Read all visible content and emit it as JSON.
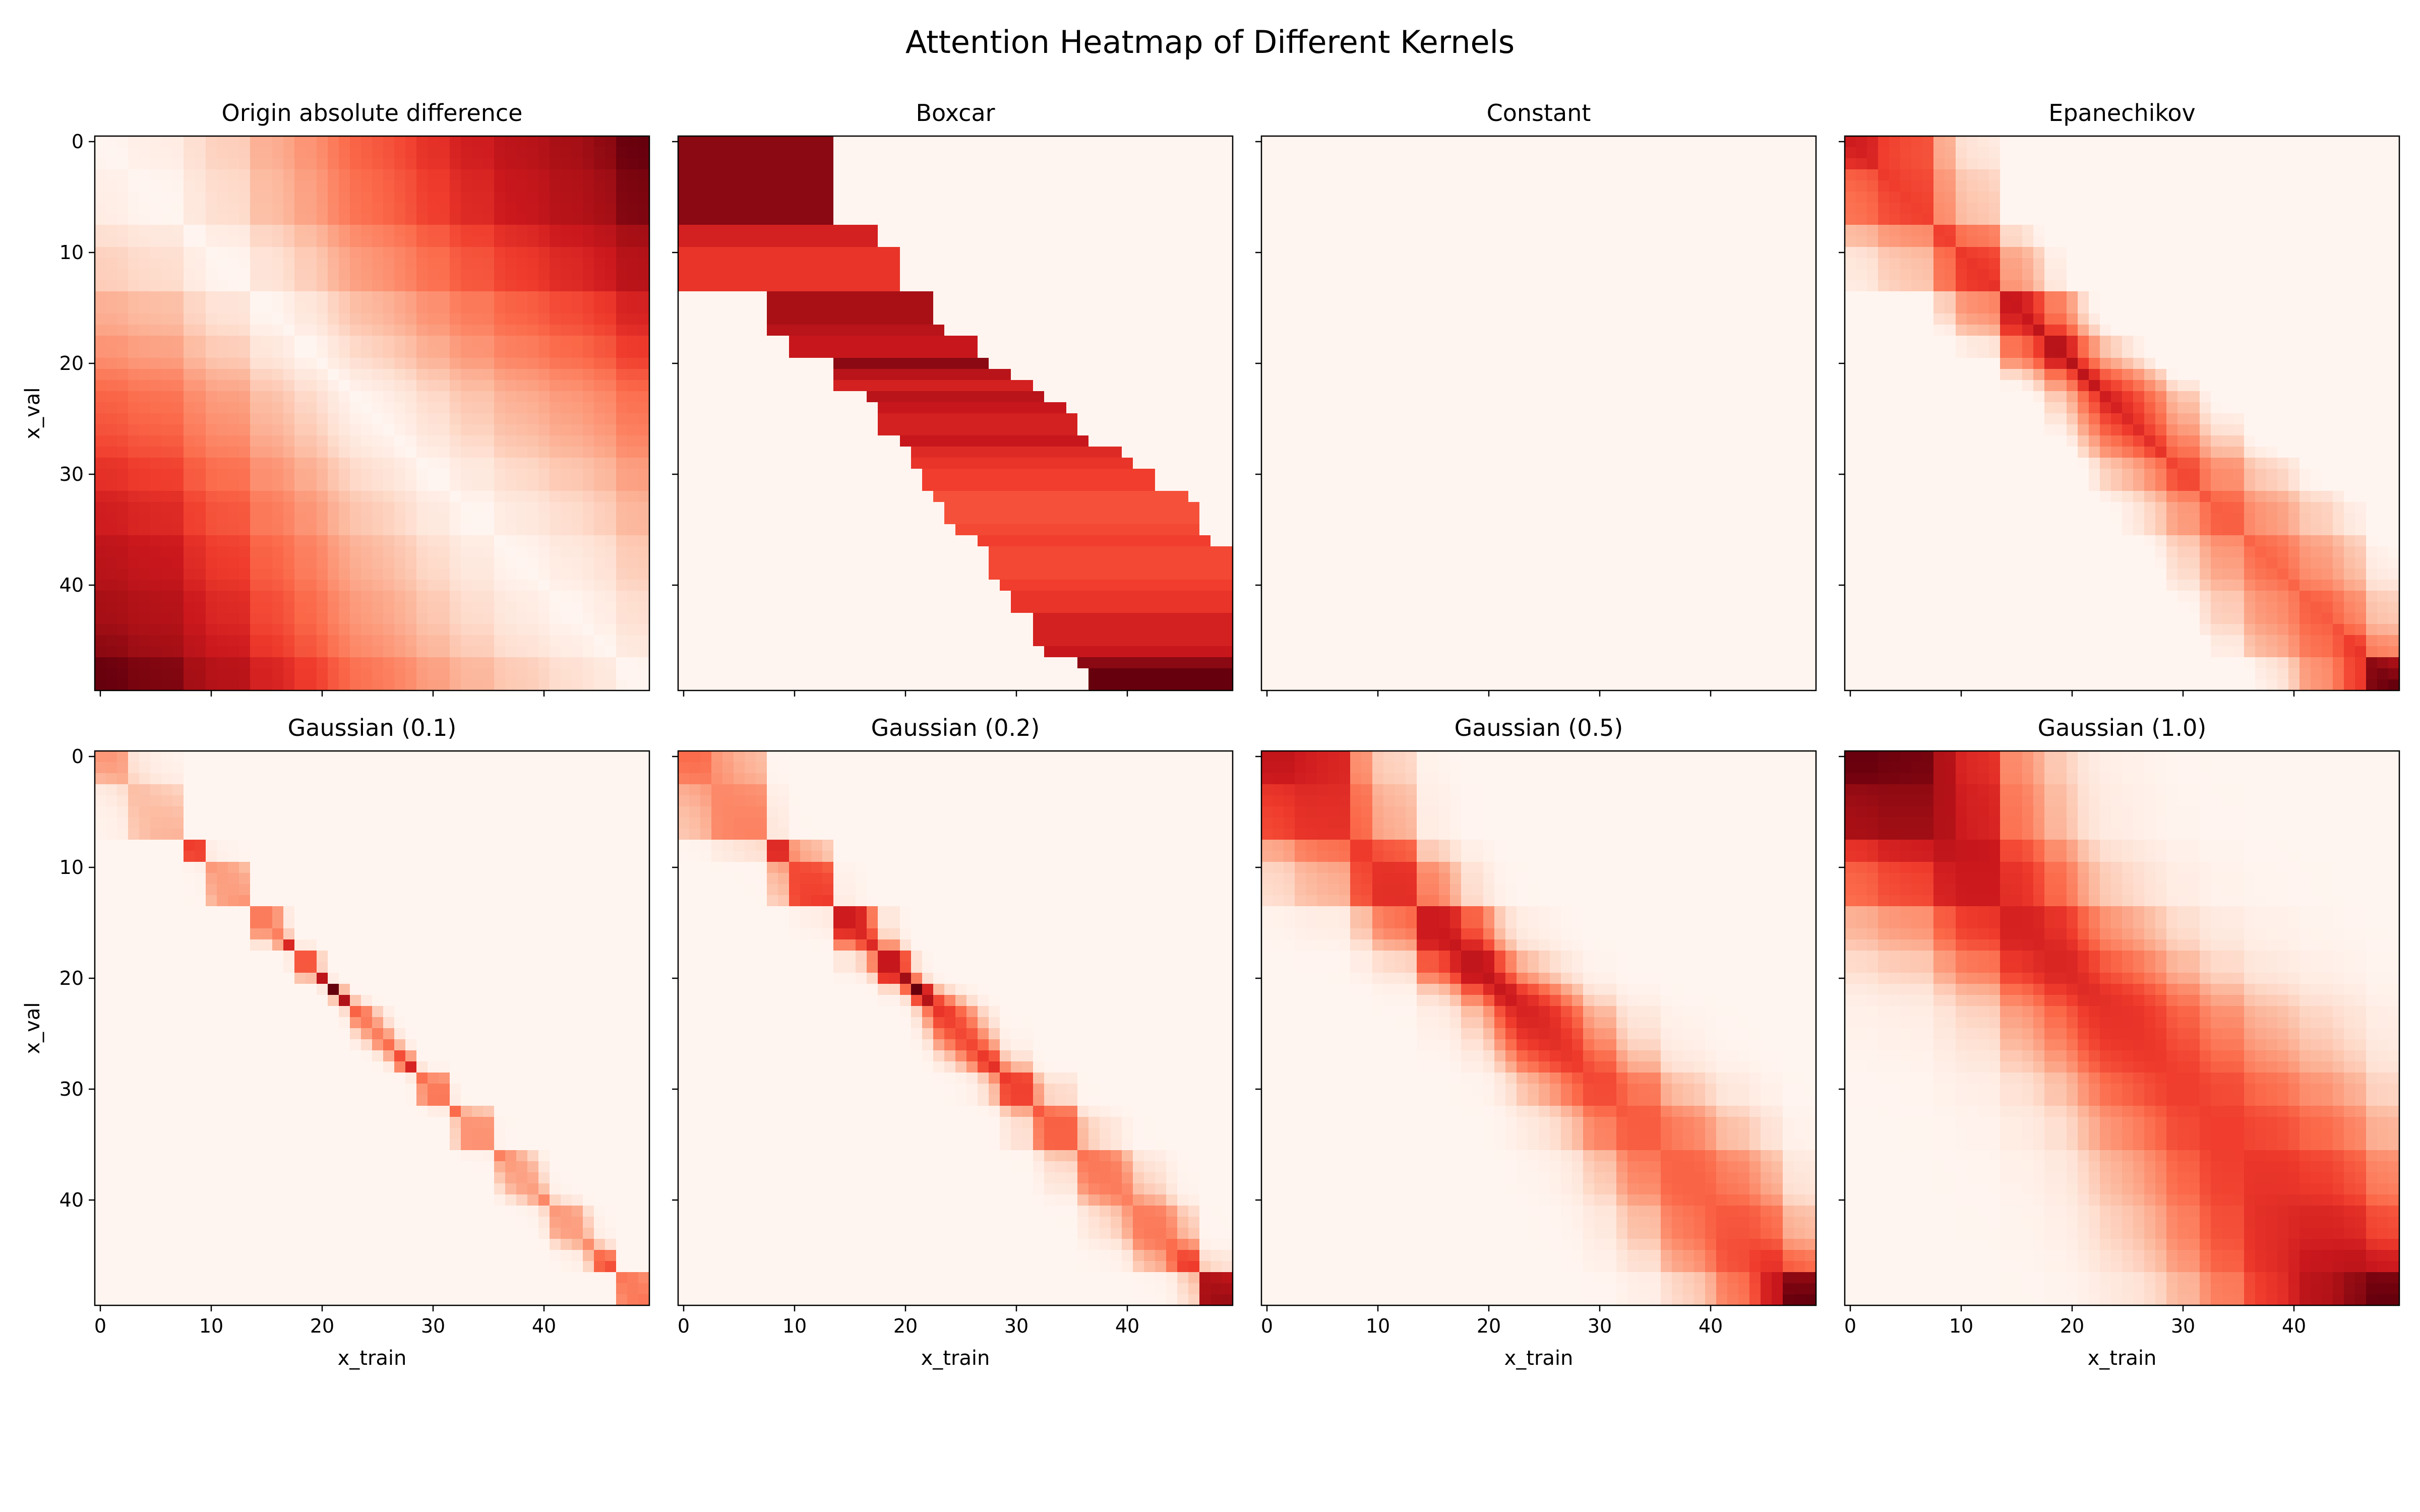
{
  "figure_title": "Attention Heatmap of Different Kernels",
  "colormap": "Reds",
  "colors": {
    "low": "#fff5f0",
    "high": "#67000d"
  },
  "chart_data": [
    {
      "type": "heatmap",
      "title": "Origin absolute difference",
      "kernel": "abs_diff",
      "n": 50,
      "xlabel": "",
      "ylabel": "x_val",
      "xticks": [
        0,
        10,
        20,
        30,
        40
      ],
      "yticks": [
        0,
        10,
        20,
        30,
        40
      ],
      "show_xticklabels": false,
      "show_yticklabels": true
    },
    {
      "type": "heatmap",
      "title": "Boxcar",
      "kernel": "boxcar",
      "n": 50,
      "xlabel": "",
      "ylabel": "",
      "xticks": [
        0,
        10,
        20,
        30,
        40
      ],
      "yticks": [
        0,
        10,
        20,
        30,
        40
      ],
      "show_xticklabels": false,
      "show_yticklabels": false
    },
    {
      "type": "heatmap",
      "title": "Constant",
      "kernel": "constant",
      "n": 50,
      "xlabel": "",
      "ylabel": "",
      "xticks": [
        0,
        10,
        20,
        30,
        40
      ],
      "yticks": [
        0,
        10,
        20,
        30,
        40
      ],
      "show_xticklabels": false,
      "show_yticklabels": false
    },
    {
      "type": "heatmap",
      "title": "Epanechikov",
      "kernel": "epanechikov",
      "n": 50,
      "xlabel": "",
      "ylabel": "",
      "xticks": [
        0,
        10,
        20,
        30,
        40
      ],
      "yticks": [
        0,
        10,
        20,
        30,
        40
      ],
      "show_xticklabels": false,
      "show_yticklabels": false
    },
    {
      "type": "heatmap",
      "title": "Gaussian (0.1)",
      "kernel": "gaussian",
      "sigma": 0.1,
      "n": 50,
      "xlabel": "x_train",
      "ylabel": "x_val",
      "xticks": [
        0,
        10,
        20,
        30,
        40
      ],
      "yticks": [
        0,
        10,
        20,
        30,
        40
      ],
      "show_xticklabels": true,
      "show_yticklabels": true
    },
    {
      "type": "heatmap",
      "title": "Gaussian (0.2)",
      "kernel": "gaussian",
      "sigma": 0.2,
      "n": 50,
      "xlabel": "x_train",
      "ylabel": "",
      "xticks": [
        0,
        10,
        20,
        30,
        40
      ],
      "yticks": [
        0,
        10,
        20,
        30,
        40
      ],
      "show_xticklabels": true,
      "show_yticklabels": false
    },
    {
      "type": "heatmap",
      "title": "Gaussian (0.5)",
      "kernel": "gaussian",
      "sigma": 0.5,
      "n": 50,
      "xlabel": "x_train",
      "ylabel": "",
      "xticks": [
        0,
        10,
        20,
        30,
        40
      ],
      "yticks": [
        0,
        10,
        20,
        30,
        40
      ],
      "show_xticklabels": true,
      "show_yticklabels": false
    },
    {
      "type": "heatmap",
      "title": "Gaussian (1.0)",
      "kernel": "gaussian",
      "sigma": 1.0,
      "n": 50,
      "xlabel": "x_train",
      "ylabel": "",
      "xticks": [
        0,
        10,
        20,
        30,
        40
      ],
      "yticks": [
        0,
        10,
        20,
        30,
        40
      ],
      "show_xticklabels": true,
      "show_yticklabels": false
    }
  ]
}
